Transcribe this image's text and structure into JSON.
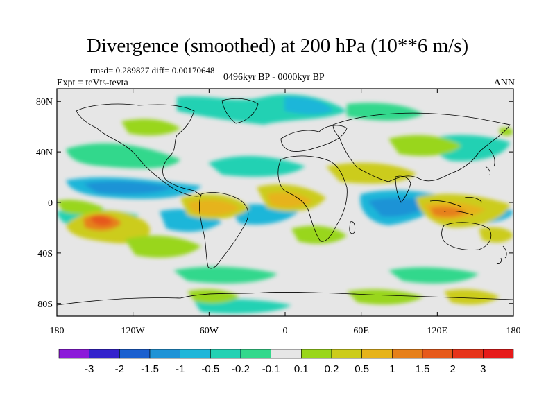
{
  "title": "Divergence (smoothed) at 200 hPa (10**6 m/s)",
  "stats": "rmsd= 0.289827 diff= 0.00170648",
  "experiment": "Expt = teVts-tevta",
  "period": "0496kyr BP - 0000kyr BP",
  "season": "ANN",
  "map": {
    "projection": "cylindrical equidistant",
    "lon_range": [
      -180,
      180
    ],
    "lat_range": [
      -90,
      90
    ],
    "background_color": "#e6e6e6",
    "lat_ticks": [
      {
        "label": "80N",
        "lat": 80
      },
      {
        "label": "40N",
        "lat": 40
      },
      {
        "label": "0",
        "lat": 0
      },
      {
        "label": "40S",
        "lat": -40
      },
      {
        "label": "80S",
        "lat": -80
      }
    ],
    "lon_ticks": [
      {
        "label": "180",
        "lon": -180
      },
      {
        "label": "120W",
        "lon": -120
      },
      {
        "label": "60W",
        "lon": -60
      },
      {
        "label": "0",
        "lon": 0
      },
      {
        "label": "60E",
        "lon": 60
      },
      {
        "label": "120E",
        "lon": 120
      },
      {
        "label": "180",
        "lon": 180
      }
    ]
  },
  "field_features": [
    {
      "lon": -140,
      "lat": -12,
      "level": 1,
      "shape": "elongated positive band"
    },
    {
      "lon": -142,
      "lat": -12,
      "level": 2,
      "shape": "core maximum"
    },
    {
      "lon": -60,
      "lat": -2,
      "level": 1,
      "shape": "positive over South America"
    },
    {
      "lon": -10,
      "lat": -3,
      "level": 1,
      "shape": "positive over Atlantic/Africa"
    },
    {
      "lon": 135,
      "lat": -12,
      "level": 1,
      "shape": "positive over Maritime Continent"
    },
    {
      "lon": 75,
      "lat": -8,
      "level": -2,
      "shape": "negative Indian Ocean"
    },
    {
      "lon": -130,
      "lat": 15,
      "level": -1,
      "shape": "negative North Pacific"
    },
    {
      "lon": -100,
      "lat": 2,
      "level": -1,
      "shape": "negative eastern Pacific"
    },
    {
      "lon": 0,
      "lat": 65,
      "level": -1,
      "shape": "negative North Atlantic high latitude"
    }
  ],
  "colorbar": {
    "labels": [
      "-3",
      "-2",
      "-1.5",
      "-1",
      "-0.5",
      "-0.2",
      "-0.1",
      "0.1",
      "0.2",
      "0.5",
      "1",
      "1.5",
      "2",
      "3"
    ],
    "colors": [
      "#8c1ad9",
      "#3322cc",
      "#1a5fcf",
      "#1f93d6",
      "#1fb6d9",
      "#24d1b3",
      "#33d88c",
      "#e6e6e6",
      "#99d61a",
      "#cccc1a",
      "#e6b31a",
      "#e6801a",
      "#e6591a",
      "#e6331a",
      "#e61a1a"
    ]
  }
}
